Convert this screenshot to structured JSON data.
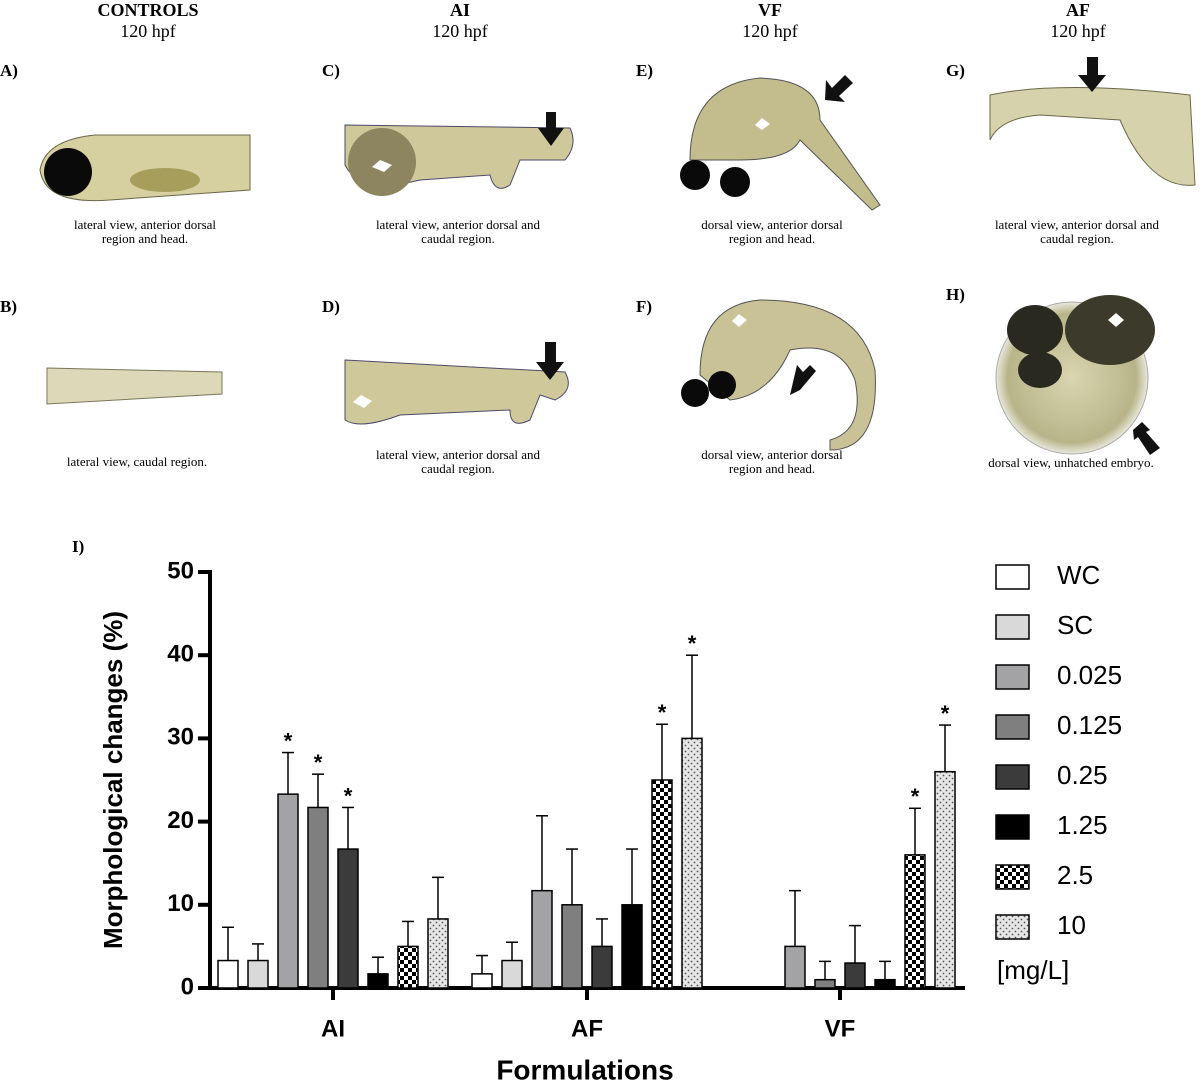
{
  "columns": [
    {
      "title": "CONTROLS",
      "subtitle": "120 hpf"
    },
    {
      "title": "AI",
      "subtitle": "120 hpf"
    },
    {
      "title": "VF",
      "subtitle": "120 hpf"
    },
    {
      "title": "AF",
      "subtitle": "120 hpf"
    }
  ],
  "panels": [
    {
      "label": "A)",
      "caption": [
        "lateral view, anterior dorsal",
        "region and head."
      ]
    },
    {
      "label": "B)",
      "caption": [
        "lateral view, caudal region."
      ]
    },
    {
      "label": "C)",
      "caption": [
        "lateral view, anterior dorsal and",
        "caudal region."
      ]
    },
    {
      "label": "D)",
      "caption": [
        "lateral view, anterior dorsal and",
        "caudal region."
      ]
    },
    {
      "label": "E)",
      "caption": [
        "dorsal view, anterior dorsal",
        "region and head."
      ]
    },
    {
      "label": "F)",
      "caption": [
        "dorsal view, anterior dorsal",
        "region and head."
      ]
    },
    {
      "label": "G)",
      "caption": [
        "lateral view, anterior dorsal and",
        "caudal region."
      ]
    },
    {
      "label": "H)",
      "caption": [
        "dorsal view, unhatched embryo."
      ]
    }
  ],
  "chart_data": {
    "type": "bar",
    "panel_label": "I)",
    "y_label": "Morphological changes (%)",
    "x_label": "Formulations",
    "categories": [
      "AI",
      "AF",
      "VF"
    ],
    "ylim": [
      0,
      50
    ],
    "yticks": [
      0,
      10,
      20,
      30,
      40,
      50
    ],
    "legend_title": "[mg/L]",
    "series": [
      {
        "name": "WC",
        "color": "#ffffff",
        "values": [
          3.3,
          1.7,
          null
        ],
        "errors": [
          4,
          2.2,
          null
        ],
        "sig": [
          null,
          null,
          null
        ]
      },
      {
        "name": "SC",
        "color": "#d9d9d9",
        "values": [
          3.3,
          3.3,
          null
        ],
        "errors": [
          2,
          2.2,
          null
        ],
        "sig": [
          null,
          null,
          null
        ]
      },
      {
        "name": "0.025",
        "color": "#a3a3a6",
        "values": [
          23.3,
          11.7,
          5
        ],
        "errors": [
          5,
          9,
          6.7
        ],
        "sig": [
          "*",
          null,
          null
        ]
      },
      {
        "name": "0.125",
        "color": "#7f7f7f",
        "values": [
          21.7,
          10,
          1
        ],
        "errors": [
          4,
          6.7,
          2.2
        ],
        "sig": [
          "*",
          null,
          null
        ]
      },
      {
        "name": "0.25",
        "color": "#3b3b3b",
        "values": [
          16.7,
          5,
          3
        ],
        "errors": [
          5,
          3.3,
          4.5
        ],
        "sig": [
          "*",
          null,
          null
        ]
      },
      {
        "name": "1.25",
        "color": "#000000",
        "values": [
          1.7,
          10,
          1
        ],
        "errors": [
          2,
          6.7,
          2.2
        ],
        "sig": [
          null,
          null,
          null
        ]
      },
      {
        "name": "2.5",
        "color": "#000000",
        "pattern": "checker",
        "values": [
          5,
          25,
          16
        ],
        "errors": [
          3,
          6.7,
          5.6
        ],
        "sig": [
          null,
          "*",
          "*"
        ]
      },
      {
        "name": "10",
        "color": "#e6e6e6",
        "pattern": "dots",
        "values": [
          8.3,
          30,
          26
        ],
        "errors": [
          5,
          10,
          5.6
        ],
        "sig": [
          null,
          "*",
          "*"
        ]
      }
    ]
  }
}
